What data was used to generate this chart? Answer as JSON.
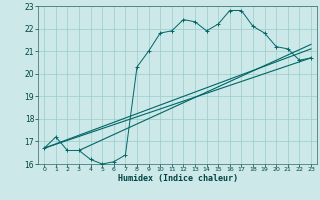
{
  "title": "",
  "xlabel": "Humidex (Indice chaleur)",
  "ylabel": "",
  "xlim": [
    -0.5,
    23.5
  ],
  "ylim": [
    16,
    23
  ],
  "xticks": [
    0,
    1,
    2,
    3,
    4,
    5,
    6,
    7,
    8,
    9,
    10,
    11,
    12,
    13,
    14,
    15,
    16,
    17,
    18,
    19,
    20,
    21,
    22,
    23
  ],
  "yticks": [
    16,
    17,
    18,
    19,
    20,
    21,
    22,
    23
  ],
  "bg_color": "#cce8e8",
  "grid_color": "#99cccc",
  "line_color": "#006666",
  "main_x": [
    0,
    1,
    2,
    3,
    4,
    5,
    6,
    7,
    8,
    9,
    10,
    11,
    12,
    13,
    14,
    15,
    16,
    17,
    18,
    19,
    20,
    21,
    22,
    23
  ],
  "main_y": [
    16.7,
    17.2,
    16.6,
    16.6,
    16.2,
    16.0,
    16.1,
    16.4,
    20.3,
    21.0,
    21.8,
    21.9,
    22.4,
    22.3,
    21.9,
    22.2,
    22.8,
    22.8,
    22.1,
    21.8,
    21.2,
    21.1,
    20.6,
    20.7
  ],
  "line2_x": [
    0,
    23
  ],
  "line2_y": [
    16.7,
    20.7
  ],
  "line3_x": [
    0,
    23
  ],
  "line3_y": [
    16.7,
    21.1
  ],
  "line4_x": [
    3,
    23
  ],
  "line4_y": [
    16.6,
    21.3
  ],
  "figsize": [
    3.2,
    2.0
  ],
  "dpi": 100
}
